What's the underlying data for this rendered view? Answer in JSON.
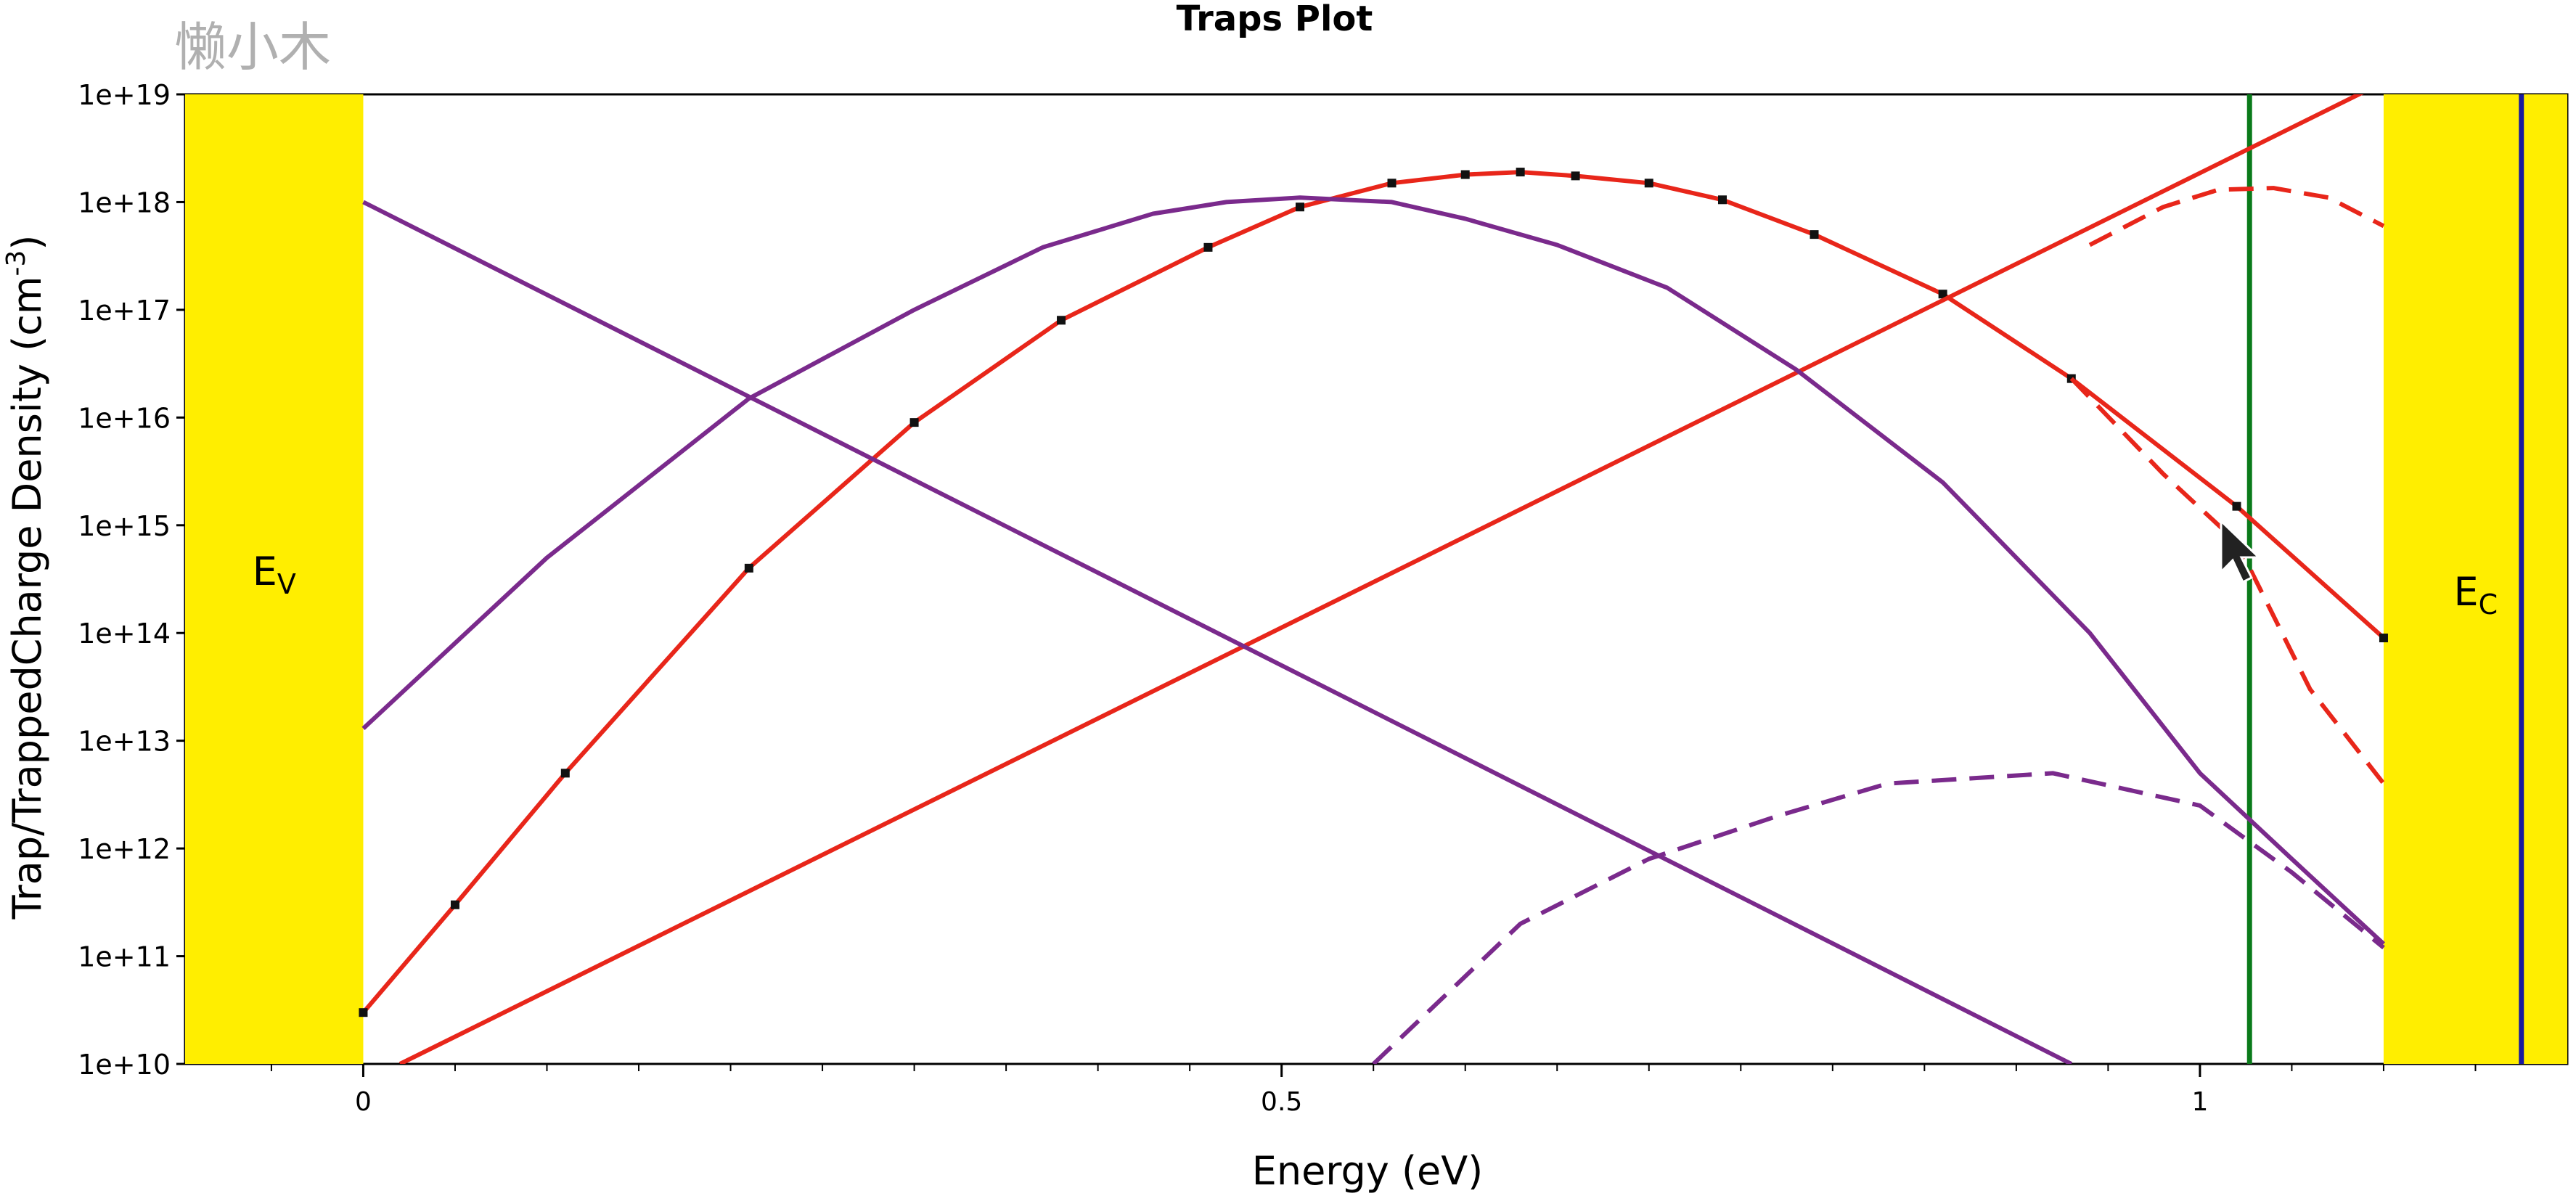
{
  "watermark": "懒小木",
  "chart_data": {
    "type": "line",
    "title": "Traps Plot",
    "xlabel": "Energy (eV)",
    "ylabel_main": "Trap/TrappedCharge Density (cm",
    "ylabel_sup": "-3",
    "ylabel_close": ")",
    "xlim": [
      -0.097,
      1.2
    ],
    "ylim": [
      10000000000.0,
      1e+19
    ],
    "yscale": "log",
    "x_ticks": [
      {
        "value": 0,
        "label": "0"
      },
      {
        "value": 0.5,
        "label": "0.5"
      },
      {
        "value": 1,
        "label": "1"
      }
    ],
    "y_ticks": [
      {
        "value": 10000000000.0,
        "label": "1e+10"
      },
      {
        "value": 100000000000.0,
        "label": "1e+11"
      },
      {
        "value": 1000000000000.0,
        "label": "1e+12"
      },
      {
        "value": 10000000000000.0,
        "label": "1e+13"
      },
      {
        "value": 100000000000000.0,
        "label": "1e+14"
      },
      {
        "value": 1000000000000000.0,
        "label": "1e+15"
      },
      {
        "value": 1e+16,
        "label": "1e+16"
      },
      {
        "value": 1e+17,
        "label": "1e+17"
      },
      {
        "value": 1e+18,
        "label": "1e+18"
      },
      {
        "value": 1e+19,
        "label": "1e+19"
      }
    ],
    "colors": {
      "band": "#ffee00",
      "red": "#e8261a",
      "purple": "#7a2a8c",
      "green": "#0a7a1a",
      "blue": "#1a1aa0"
    },
    "bands": [
      {
        "name": "valence-band",
        "x0": -0.097,
        "x1": 0.0,
        "label": "E",
        "sub": "V"
      },
      {
        "name": "conduction-band",
        "x0": 1.1,
        "x1": 1.2,
        "label": "E",
        "sub": "C"
      }
    ],
    "vlines": [
      {
        "name": "fermi-level-line",
        "x": 1.027,
        "color": "green"
      },
      {
        "name": "band-edge-line",
        "x": 1.175,
        "color": "blue"
      }
    ],
    "series": [
      {
        "key": "gaussian-trap-red",
        "color": "red",
        "style": "solid",
        "markers": true,
        "x": [
          0.0,
          0.05,
          0.11,
          0.21,
          0.3,
          0.38,
          0.46,
          0.51,
          0.56,
          0.6,
          0.63,
          0.66,
          0.7,
          0.74,
          0.79,
          0.86,
          0.93,
          1.02,
          1.1
        ],
        "y": [
          30000000000.0,
          300000000000.0,
          5000000000000.0,
          400000000000000.0,
          9000000000000000.0,
          8e+16,
          3.8e+17,
          9e+17,
          1.5e+18,
          1.8e+18,
          1.9e+18,
          1.75e+18,
          1.5e+18,
          1.05e+18,
          5e+17,
          1.4e+17,
          2.3e+16,
          1500000000000000.0,
          90000000000000.0
        ]
      },
      {
        "key": "gaussian-trap-red-charge",
        "color": "red",
        "style": "dashed",
        "markers": false,
        "x": [
          0.93,
          0.98,
          1.02,
          1.06,
          1.1
        ],
        "y": [
          2.3e+16,
          3000000000000000.0,
          700000000000000.0,
          30000000000000.0,
          4000000000000.0
        ]
      },
      {
        "key": "acceptor-tail-red",
        "color": "red",
        "style": "solid",
        "markers": false,
        "x": [
          0.02,
          1.1
        ],
        "y": [
          10000000000.0,
          1.3e+19
        ]
      },
      {
        "key": "acceptor-tail-red-charge",
        "color": "red",
        "style": "dashed",
        "markers": false,
        "x": [
          0.94,
          0.98,
          1.01,
          1.04,
          1.07,
          1.1
        ],
        "y": [
          4e+17,
          9e+17,
          1.3e+18,
          1.35e+18,
          1.1e+18,
          6e+17
        ]
      },
      {
        "key": "gaussian-trap-purple",
        "color": "purple",
        "style": "solid",
        "markers": false,
        "x": [
          0.0,
          0.1,
          0.21,
          0.3,
          0.37,
          0.43,
          0.47,
          0.51,
          0.56,
          0.6,
          0.65,
          0.71,
          0.78,
          0.86,
          0.94,
          1.0,
          1.05,
          1.1
        ],
        "y": [
          13000000000000.0,
          500000000000000.0,
          1.5e+16,
          1e+17,
          3.8e+17,
          7.8e+17,
          1e+18,
          1.1e+18,
          1e+18,
          7e+17,
          4e+17,
          1.6e+17,
          2.8e+16,
          2500000000000000.0,
          100000000000000.0,
          5000000000000.0,
          800000000000.0,
          130000000000.0
        ]
      },
      {
        "key": "donor-tail-purple",
        "color": "purple",
        "style": "solid",
        "markers": false,
        "x": [
          0.0,
          0.93
        ],
        "y": [
          1e+18,
          10000000000.0
        ]
      },
      {
        "key": "gaussian-trap-purple-charge",
        "color": "purple",
        "style": "dashed",
        "markers": false,
        "x": [
          0.55,
          0.63,
          0.7,
          0.77,
          0.83,
          0.92,
          1.0,
          1.05,
          1.1
        ],
        "y": [
          10000000000.0,
          200000000000.0,
          800000000000.0,
          2000000000000.0,
          4000000000000.0,
          5000000000000.0,
          2500000000000.0,
          600000000000.0,
          120000000000.0
        ]
      }
    ]
  }
}
